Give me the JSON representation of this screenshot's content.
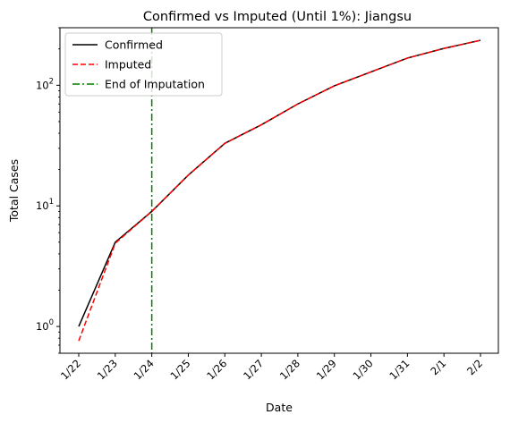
{
  "chart_data": {
    "type": "line",
    "title": "Confirmed vs Imputed (Until 1%): Jiangsu",
    "xlabel": "Date",
    "ylabel": "Total Cases",
    "yscale": "log",
    "ylim": [
      0.6,
      300
    ],
    "y_ticks": [
      {
        "value": 1,
        "base": "10",
        "exp": "0"
      },
      {
        "value": 10,
        "base": "10",
        "exp": "1"
      },
      {
        "value": 100,
        "base": "10",
        "exp": "2"
      }
    ],
    "categories": [
      "1/22",
      "1/23",
      "1/24",
      "1/25",
      "1/26",
      "1/27",
      "1/28",
      "1/29",
      "1/30",
      "1/31",
      "2/1",
      "2/2"
    ],
    "series": [
      {
        "name": "Confirmed",
        "color": "#000000",
        "style": "solid",
        "values": [
          1,
          5,
          9,
          18,
          33,
          47,
          70,
          99,
          129,
          168,
          202,
          236
        ]
      },
      {
        "name": "Imputed",
        "color": "#ff0000",
        "style": "dashed",
        "values": [
          0.76,
          4.9,
          9,
          18,
          33,
          47,
          70,
          99,
          129,
          168,
          202,
          236
        ]
      }
    ],
    "vline": {
      "name": "End of Imputation",
      "x": "1/24",
      "color": "#008000",
      "style": "dashdot"
    },
    "legend_position": "top-left",
    "grid": false
  }
}
